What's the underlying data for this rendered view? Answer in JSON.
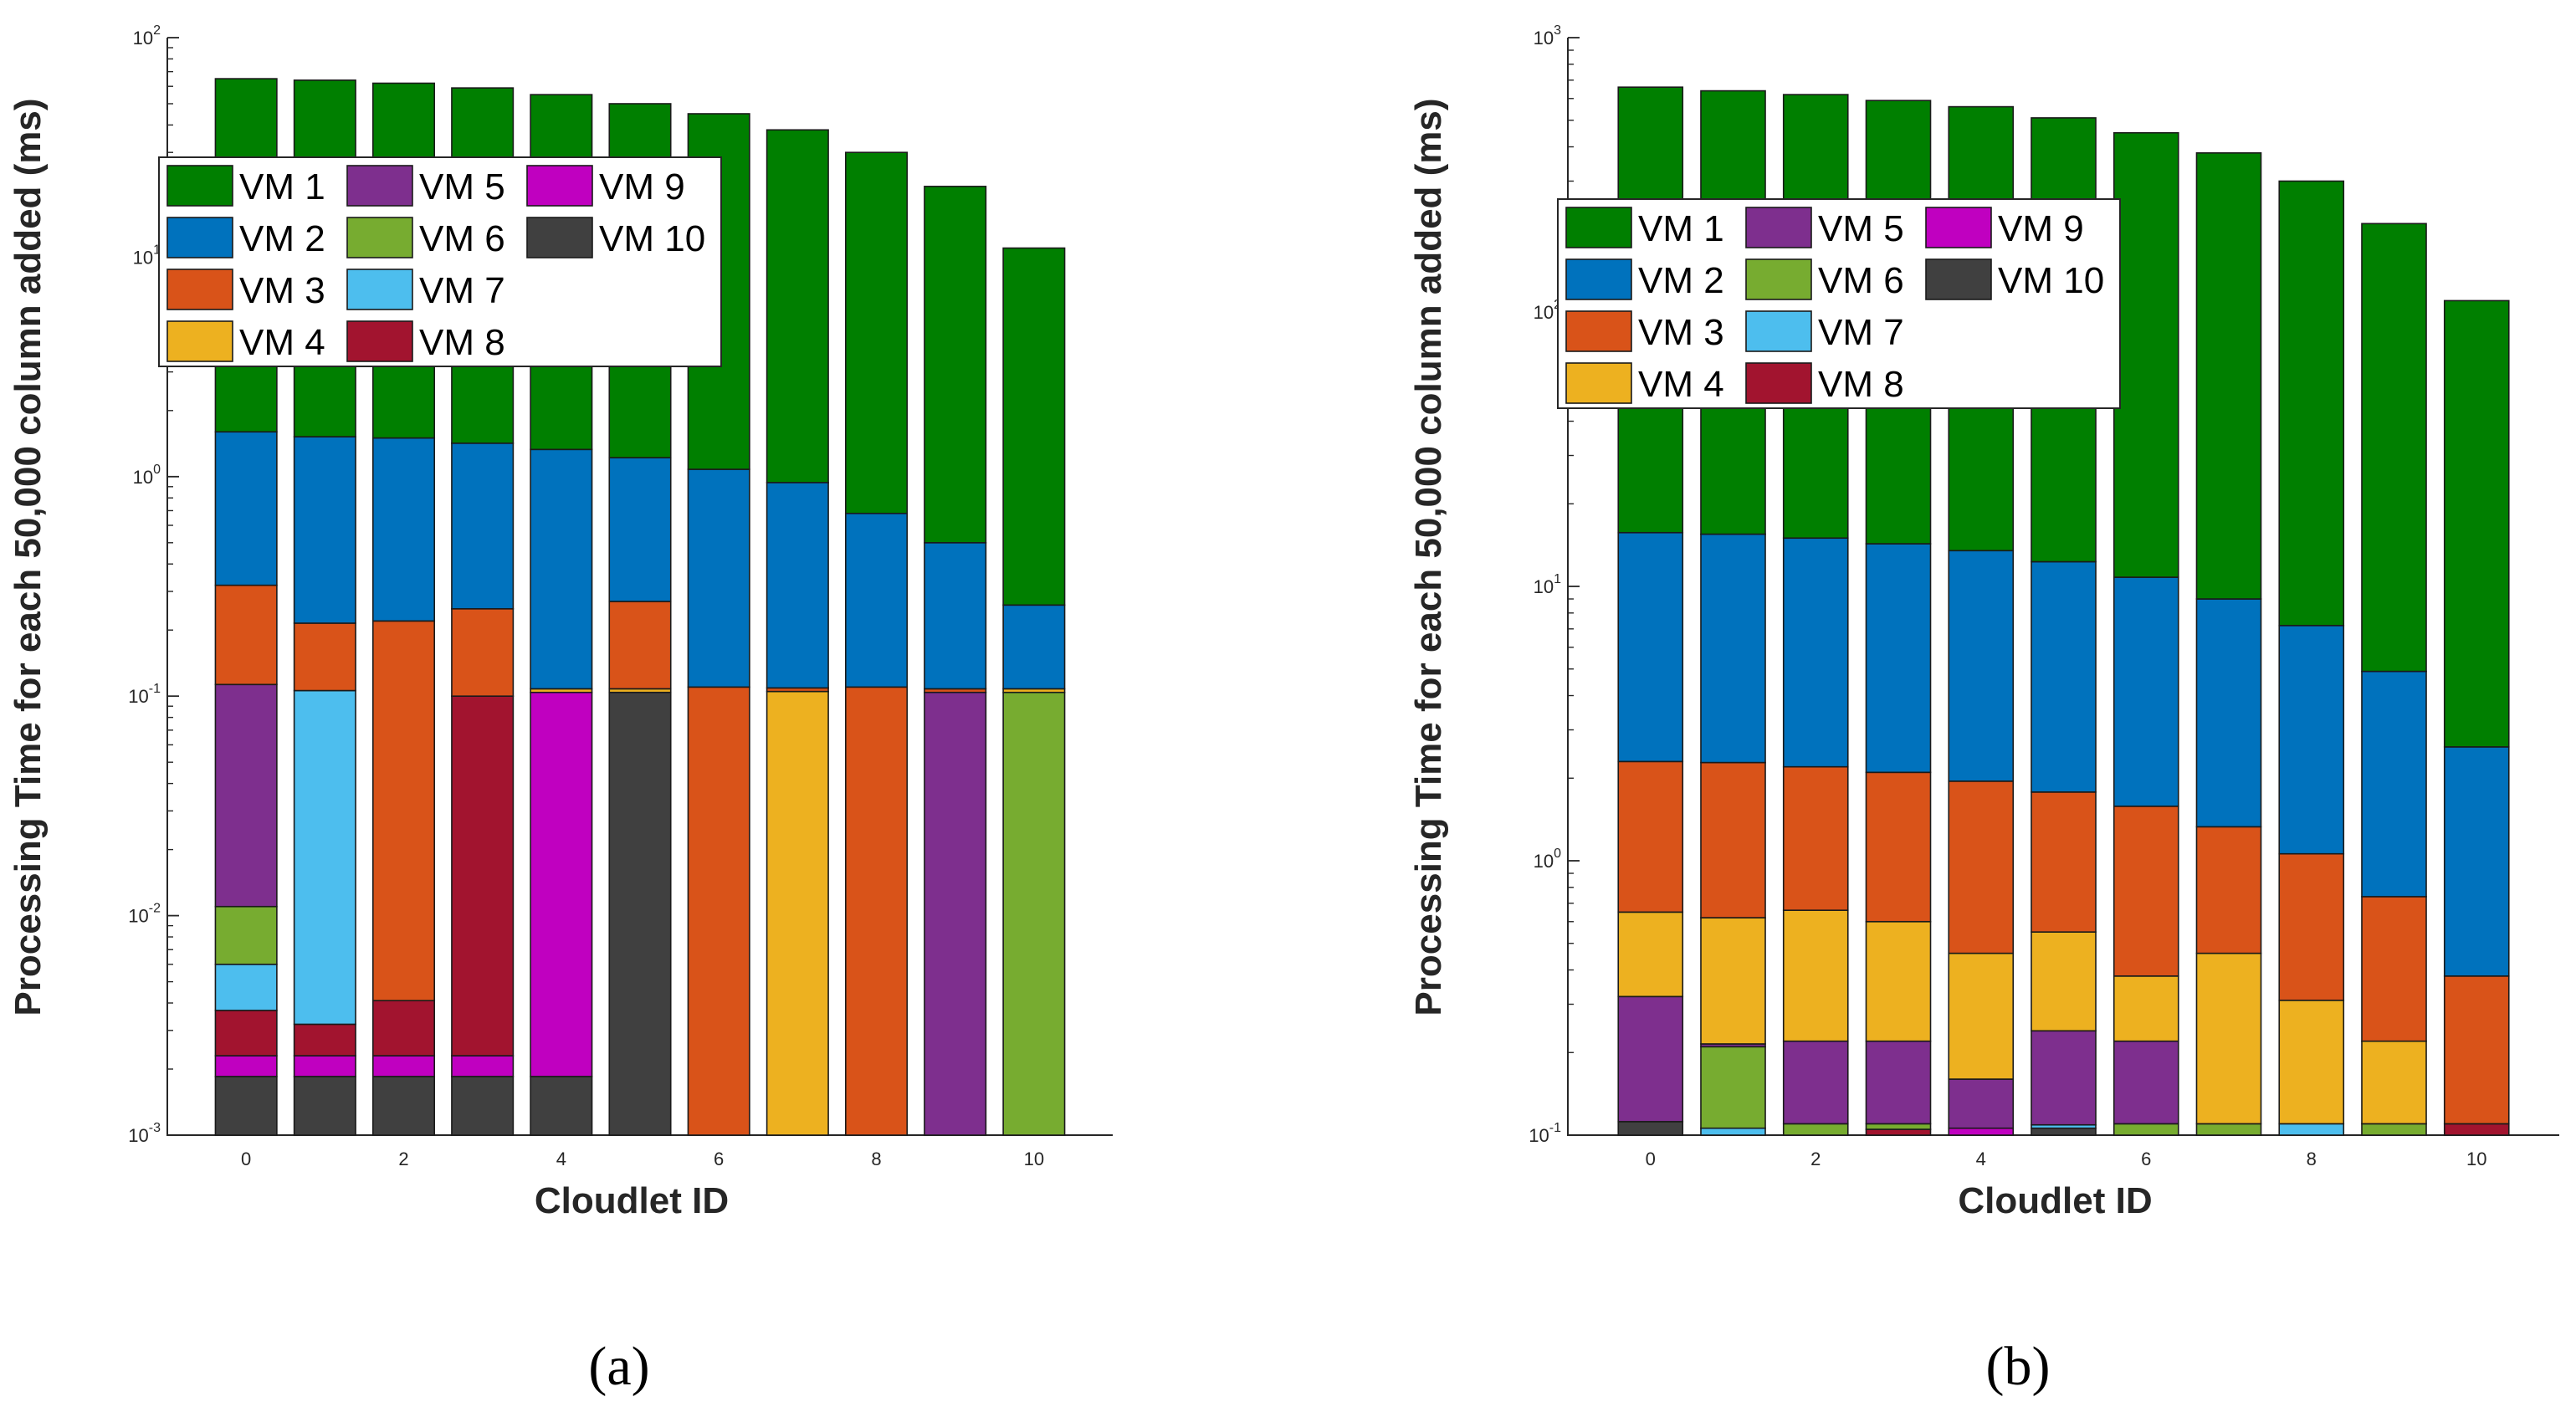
{
  "colors": {
    "VM 1": "#007f00",
    "VM 2": "#0072bd",
    "VM 3": "#d95319",
    "VM 4": "#edb120",
    "VM 5": "#7e2f8e",
    "VM 6": "#77ac30",
    "VM 7": "#4dbeee",
    "VM 8": "#a2142f",
    "VM 9": "#c000c0",
    "VM 10": "#404040"
  },
  "legend_order": [
    "VM 1",
    "VM 2",
    "VM 3",
    "VM 4",
    "VM 5",
    "VM 6",
    "VM 7",
    "VM 8",
    "VM 9",
    "VM 10"
  ],
  "panel_labels": [
    "(a)",
    "(b)"
  ],
  "chart_data": [
    {
      "type": "bar",
      "stacked": true,
      "yscale": "log",
      "ylim": [
        0.001,
        100
      ],
      "ytick_exponents": [
        -3,
        -2,
        -1,
        0,
        1,
        2
      ],
      "xtick_labels": [
        "0",
        "2",
        "4",
        "6",
        "8",
        "10"
      ],
      "xtick_values": [
        0,
        2,
        4,
        6,
        8,
        10
      ],
      "xlabel": "Cloudlet ID",
      "ylabel": "Processing Time for each 50,000 column added (ms)",
      "legend_position": "top-left",
      "cloudlets": [
        {
          "id": 0,
          "stack": [
            [
              "VM 10",
              0.00185
            ],
            [
              "VM 9",
              0.0023
            ],
            [
              "VM 8",
              0.0037
            ],
            [
              "VM 7",
              0.006
            ],
            [
              "VM 6",
              0.011
            ],
            [
              "VM 5",
              0.113
            ],
            [
              "VM 3",
              0.32
            ],
            [
              "VM 2",
              1.6
            ],
            [
              "VM 1",
              65
            ]
          ]
        },
        {
          "id": 1,
          "stack": [
            [
              "VM 10",
              0.00185
            ],
            [
              "VM 9",
              0.0023
            ],
            [
              "VM 8",
              0.0032
            ],
            [
              "VM 7",
              0.106
            ],
            [
              "VM 3",
              0.215
            ],
            [
              "VM 2",
              1.52
            ],
            [
              "VM 1",
              64
            ]
          ]
        },
        {
          "id": 2,
          "stack": [
            [
              "VM 10",
              0.00185
            ],
            [
              "VM 9",
              0.0023
            ],
            [
              "VM 8",
              0.0041
            ],
            [
              "VM 3",
              0.22
            ],
            [
              "VM 2",
              1.5
            ],
            [
              "VM 1",
              62
            ]
          ]
        },
        {
          "id": 3,
          "stack": [
            [
              "VM 10",
              0.00185
            ],
            [
              "VM 9",
              0.0023
            ],
            [
              "VM 8",
              0.1
            ],
            [
              "VM 3",
              0.25
            ],
            [
              "VM 2",
              1.42
            ],
            [
              "VM 1",
              59
            ]
          ]
        },
        {
          "id": 4,
          "stack": [
            [
              "VM 10",
              0.00185
            ],
            [
              "VM 9",
              0.104
            ],
            [
              "VM 4",
              0.108
            ],
            [
              "VM 2",
              1.33
            ],
            [
              "VM 1",
              55
            ]
          ]
        },
        {
          "id": 5,
          "stack": [
            [
              "VM 10",
              0.104
            ],
            [
              "VM 4",
              0.108
            ],
            [
              "VM 3",
              0.27
            ],
            [
              "VM 2",
              1.22
            ],
            [
              "VM 1",
              50
            ]
          ]
        },
        {
          "id": 6,
          "stack": [
            [
              "VM 3",
              0.11
            ],
            [
              "VM 2",
              1.08
            ],
            [
              "VM 1",
              45
            ]
          ]
        },
        {
          "id": 7,
          "stack": [
            [
              "VM 4",
              0.105
            ],
            [
              "VM 3",
              0.109
            ],
            [
              "VM 2",
              0.94
            ],
            [
              "VM 1",
              38
            ]
          ]
        },
        {
          "id": 8,
          "stack": [
            [
              "VM 3",
              0.11
            ],
            [
              "VM 2",
              0.68
            ],
            [
              "VM 1",
              30
            ]
          ]
        },
        {
          "id": 9,
          "stack": [
            [
              "VM 5",
              0.104
            ],
            [
              "VM 3",
              0.108
            ],
            [
              "VM 2",
              0.5
            ],
            [
              "VM 1",
              21
            ]
          ]
        },
        {
          "id": 10,
          "stack": [
            [
              "VM 6",
              0.104
            ],
            [
              "VM 4",
              0.108
            ],
            [
              "VM 2",
              0.26
            ],
            [
              "VM 1",
              11
            ]
          ]
        }
      ]
    },
    {
      "type": "bar",
      "stacked": true,
      "yscale": "log",
      "ylim": [
        0.1,
        1000
      ],
      "ytick_exponents": [
        -1,
        0,
        1,
        2,
        3
      ],
      "xtick_labels": [
        "0",
        "2",
        "4",
        "6",
        "8",
        "10"
      ],
      "xtick_values": [
        0,
        2,
        4,
        6,
        8,
        10
      ],
      "xlabel": "Cloudlet ID",
      "ylabel": "Processing Time for each 50,000 column added (ms)",
      "legend_position": "top-left",
      "cloudlets": [
        {
          "id": 0,
          "stack": [
            [
              "VM 10",
              0.112
            ],
            [
              "VM 5",
              0.32
            ],
            [
              "VM 4",
              0.65
            ],
            [
              "VM 3",
              2.3
            ],
            [
              "VM 2",
              15.7
            ],
            [
              "VM 1",
              660
            ]
          ]
        },
        {
          "id": 1,
          "stack": [
            [
              "VM 7",
              0.106
            ],
            [
              "VM 6",
              0.21
            ],
            [
              "VM 5",
              0.215
            ],
            [
              "VM 4",
              0.62
            ],
            [
              "VM 3",
              2.28
            ],
            [
              "VM 2",
              15.5
            ],
            [
              "VM 1",
              640
            ]
          ]
        },
        {
          "id": 2,
          "stack": [
            [
              "VM 6",
              0.11
            ],
            [
              "VM 5",
              0.22
            ],
            [
              "VM 4",
              0.66
            ],
            [
              "VM 3",
              2.2
            ],
            [
              "VM 2",
              15
            ],
            [
              "VM 1",
              620
            ]
          ]
        },
        {
          "id": 3,
          "stack": [
            [
              "VM 8",
              0.105
            ],
            [
              "VM 6",
              0.11
            ],
            [
              "VM 5",
              0.22
            ],
            [
              "VM 4",
              0.6
            ],
            [
              "VM 3",
              2.1
            ],
            [
              "VM 2",
              14.3
            ],
            [
              "VM 1",
              590
            ]
          ]
        },
        {
          "id": 4,
          "stack": [
            [
              "VM 9",
              0.106
            ],
            [
              "VM 5",
              0.16
            ],
            [
              "VM 4",
              0.46
            ],
            [
              "VM 3",
              1.95
            ],
            [
              "VM 2",
              13.5
            ],
            [
              "VM 1",
              560
            ]
          ]
        },
        {
          "id": 5,
          "stack": [
            [
              "VM 10",
              0.106
            ],
            [
              "VM 7",
              0.109
            ],
            [
              "VM 5",
              0.24
            ],
            [
              "VM 4",
              0.55
            ],
            [
              "VM 3",
              1.78
            ],
            [
              "VM 2",
              12.3
            ],
            [
              "VM 1",
              510
            ]
          ]
        },
        {
          "id": 6,
          "stack": [
            [
              "VM 6",
              0.11
            ],
            [
              "VM 5",
              0.22
            ],
            [
              "VM 4",
              0.38
            ],
            [
              "VM 3",
              1.58
            ],
            [
              "VM 2",
              10.8
            ],
            [
              "VM 1",
              450
            ]
          ]
        },
        {
          "id": 7,
          "stack": [
            [
              "VM 6",
              0.11
            ],
            [
              "VM 4",
              0.46
            ],
            [
              "VM 3",
              1.33
            ],
            [
              "VM 2",
              9
            ],
            [
              "VM 1",
              380
            ]
          ]
        },
        {
          "id": 8,
          "stack": [
            [
              "VM 7",
              0.11
            ],
            [
              "VM 4",
              0.31
            ],
            [
              "VM 3",
              1.06
            ],
            [
              "VM 2",
              7.2
            ],
            [
              "VM 1",
              300
            ]
          ]
        },
        {
          "id": 9,
          "stack": [
            [
              "VM 6",
              0.11
            ],
            [
              "VM 4",
              0.22
            ],
            [
              "VM 3",
              0.74
            ],
            [
              "VM 2",
              4.9
            ],
            [
              "VM 1",
              210
            ]
          ]
        },
        {
          "id": 10,
          "stack": [
            [
              "VM 8",
              0.11
            ],
            [
              "VM 3",
              0.38
            ],
            [
              "VM 2",
              2.6
            ],
            [
              "VM 1",
              110
            ]
          ]
        }
      ]
    }
  ]
}
